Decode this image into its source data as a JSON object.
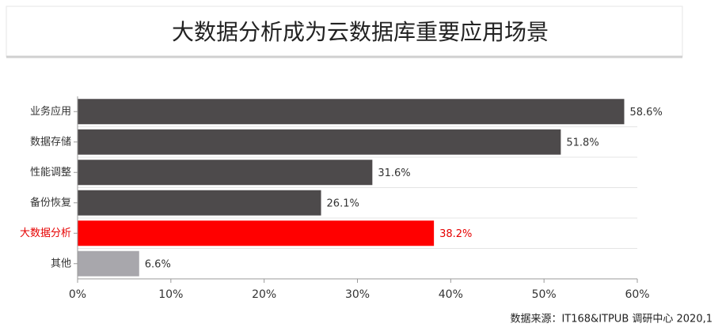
{
  "chart_data": {
    "type": "bar",
    "orientation": "horizontal",
    "title": "大数据分析成为云数据库重要应用场景",
    "categories": [
      "业务应用",
      "数据存储",
      "性能调整",
      "备份恢复",
      "大数据分析",
      "其他"
    ],
    "values": [
      58.6,
      51.8,
      31.6,
      26.1,
      38.2,
      6.6
    ],
    "value_labels": [
      "58.6%",
      "51.8%",
      "31.6%",
      "26.1%",
      "38.2%",
      "6.6%"
    ],
    "colors": [
      "#4d4a4b",
      "#4d4a4b",
      "#4d4a4b",
      "#4d4a4b",
      "#ff0000",
      "#a8a7ac"
    ],
    "label_colors": [
      "#333333",
      "#333333",
      "#333333",
      "#333333",
      "#e60000",
      "#333333"
    ],
    "xlim": [
      0,
      60
    ],
    "xticks": [
      {
        "value": 0,
        "label": "0%"
      },
      {
        "value": 10,
        "label": "10%"
      },
      {
        "value": 20,
        "label": "20%"
      },
      {
        "value": 30,
        "label": "30%"
      },
      {
        "value": 40,
        "label": "40%"
      },
      {
        "value": 50,
        "label": "50%"
      },
      {
        "value": 60,
        "label": "60%"
      }
    ],
    "source": "数据来源：IT168&ITPUB 调研中心 2020,1"
  }
}
